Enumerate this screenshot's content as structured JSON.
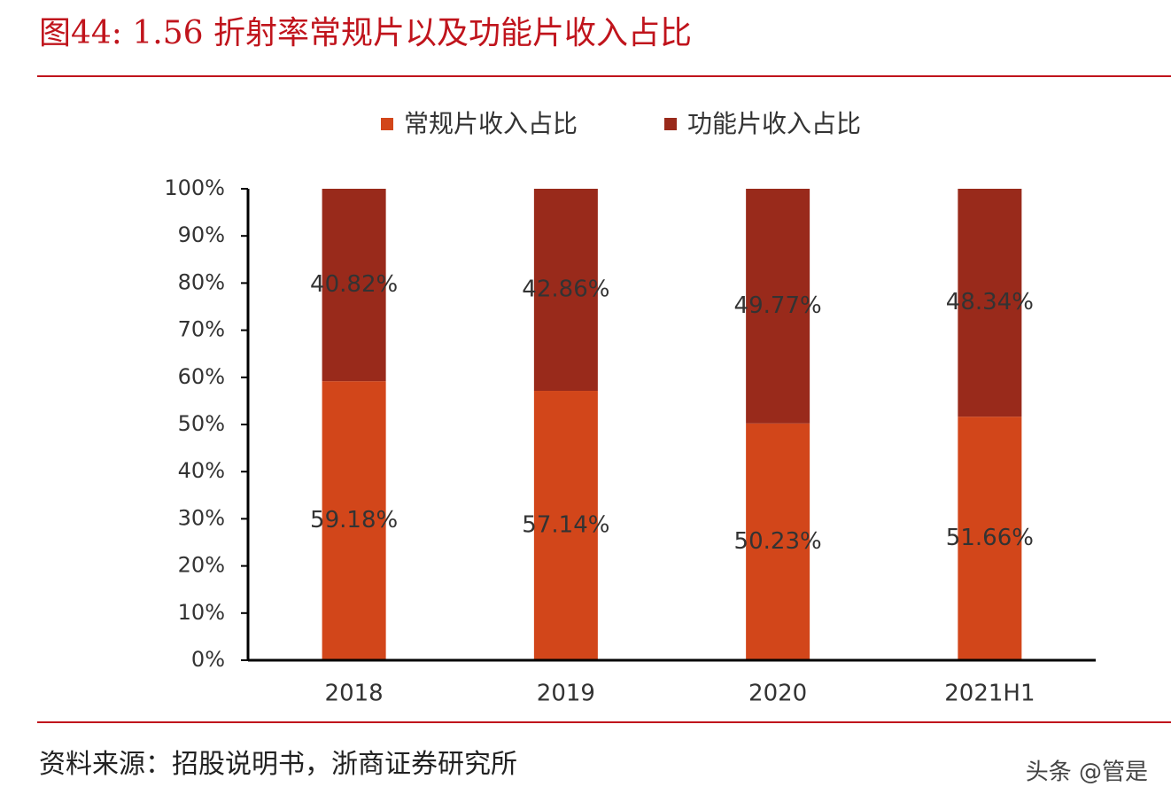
{
  "chart_data": {
    "type": "bar",
    "stacked": true,
    "title": "图44:  1.56 折射率常规片以及功能片收入占比",
    "source": "资料来源：招股说明书，浙商证券研究所",
    "watermark": "头条 @管是",
    "categories": [
      "2018",
      "2019",
      "2020",
      "2021H1"
    ],
    "series": [
      {
        "name": "常规片收入占比",
        "color": "#d2461a",
        "values": [
          59.18,
          57.14,
          50.23,
          51.66
        ],
        "value_labels": [
          "59.18%",
          "57.14%",
          "50.23%",
          "51.66%"
        ]
      },
      {
        "name": "功能片收入占比",
        "color": "#992a1b",
        "values": [
          40.82,
          42.86,
          49.77,
          48.34
        ],
        "value_labels": [
          "40.82%",
          "42.86%",
          "49.77%",
          "48.34%"
        ]
      }
    ],
    "ylim": [
      0,
      100
    ],
    "yticks": [
      {
        "value": 0,
        "label": "0%"
      },
      {
        "value": 10,
        "label": "10%"
      },
      {
        "value": 20,
        "label": "20%"
      },
      {
        "value": 30,
        "label": "30%"
      },
      {
        "value": 40,
        "label": "40%"
      },
      {
        "value": 50,
        "label": "50%"
      },
      {
        "value": 60,
        "label": "60%"
      },
      {
        "value": 70,
        "label": "70%"
      },
      {
        "value": 80,
        "label": "80%"
      },
      {
        "value": 90,
        "label": "90%"
      },
      {
        "value": 100,
        "label": "100%"
      }
    ]
  }
}
